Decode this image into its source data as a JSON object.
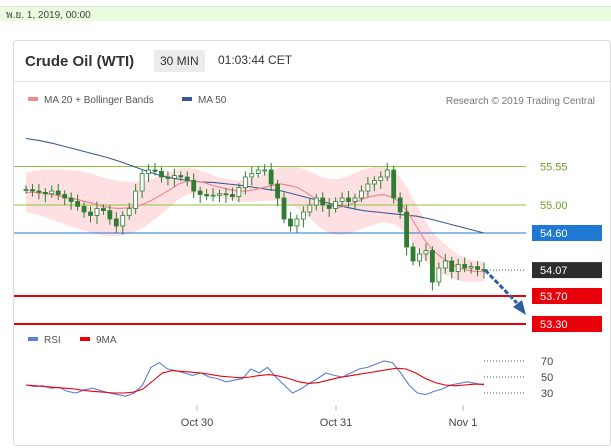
{
  "date_label": "พ.ย. 1, 2019, 00:00",
  "header": {
    "title": "Crude Oil (WTI)",
    "timeframe": "30 MIN",
    "time": "01:03:44 CET"
  },
  "legend": {
    "ma20": "MA 20 + Bollinger Bands",
    "ma50": "MA 50",
    "credit": "Research © 2019 Trading Central"
  },
  "rsi_legend": {
    "rsi": "RSI",
    "ma9": "9MA"
  },
  "colors": {
    "green": "#8cc63f",
    "blue": "#1f78d1",
    "red": "#e8000b",
    "dark": "#2d2d2d",
    "candle": "#2e7d32",
    "band": "#ffd5d8",
    "ma20": "#f08a90",
    "ma50": "#3a5a96",
    "arrow": "#2e5fa3"
  },
  "chart_data": {
    "type": "candlestick",
    "ylim": [
      53.2,
      56.2
    ],
    "x_ticks": [
      "Oct 30",
      "Oct 31",
      "Nov 1"
    ],
    "levels": [
      {
        "label": "55.55",
        "value": 55.55,
        "style": "green"
      },
      {
        "label": "55.00",
        "value": 55.0,
        "style": "green"
      },
      {
        "label": "54.60",
        "value": 54.6,
        "style": "blue"
      },
      {
        "label": "54.07",
        "value": 54.07,
        "style": "dark"
      },
      {
        "label": "53.70",
        "value": 53.7,
        "style": "red"
      },
      {
        "label": "53.30",
        "value": 53.3,
        "style": "red"
      }
    ],
    "price": [
      55.22,
      55.2,
      55.18,
      55.16,
      55.2,
      55.15,
      55.1,
      55.05,
      54.98,
      54.9,
      54.85,
      54.95,
      54.92,
      54.8,
      54.7,
      54.85,
      54.95,
      55.2,
      55.45,
      55.5,
      55.48,
      55.4,
      55.38,
      55.42,
      55.4,
      55.35,
      55.2,
      55.15,
      55.13,
      55.14,
      55.16,
      55.15,
      55.12,
      55.25,
      55.4,
      55.45,
      55.5,
      55.5,
      55.3,
      55.1,
      54.8,
      54.7,
      54.8,
      54.9,
      55.0,
      55.1,
      55.0,
      54.95,
      55.05,
      55.1,
      55.05,
      55.1,
      55.2,
      55.3,
      55.35,
      55.4,
      55.5,
      55.1,
      54.9,
      54.4,
      54.2,
      54.3,
      54.35,
      53.9,
      54.1,
      54.2,
      54.05,
      54.15,
      54.1,
      54.12,
      54.08,
      54.07
    ],
    "ma20": [
      55.18,
      55.18,
      55.17,
      55.15,
      55.13,
      55.1,
      55.08,
      55.05,
      55.02,
      54.98,
      54.96,
      54.95,
      54.96,
      54.98,
      55.02,
      55.08,
      55.15,
      55.22,
      55.3,
      55.34,
      55.34,
      55.32,
      55.28,
      55.25,
      55.22,
      55.2,
      55.2,
      55.22,
      55.25,
      55.28,
      55.3,
      55.28,
      55.25,
      55.18,
      55.1,
      55.02,
      54.98,
      54.97,
      55.0,
      55.05,
      55.1,
      55.13,
      55.15,
      55.12,
      55.05,
      54.9,
      54.7,
      54.5,
      54.35,
      54.25,
      54.18,
      54.1,
      54.07,
      54.05,
      54.05
    ],
    "ma50": [
      55.95,
      55.92,
      55.88,
      55.83,
      55.78,
      55.73,
      55.68,
      55.62,
      55.55,
      55.48,
      55.42,
      55.38,
      55.35,
      55.33,
      55.32,
      55.3,
      55.28,
      55.25,
      55.22,
      55.2,
      55.15,
      55.1,
      55.05,
      55.0,
      54.96,
      54.92,
      54.9,
      54.88,
      54.86,
      54.84,
      54.8,
      54.75,
      54.7,
      54.65,
      54.6
    ],
    "rsi_ticks": [
      70,
      50,
      30
    ],
    "rsi_ylim": [
      20,
      80
    ],
    "rsi": [
      40,
      38,
      39,
      36,
      37,
      32,
      30,
      34,
      36,
      33,
      30,
      28,
      26,
      30,
      40,
      62,
      68,
      60,
      58,
      55,
      52,
      55,
      50,
      48,
      44,
      46,
      48,
      60,
      55,
      62,
      50,
      40,
      30,
      35,
      42,
      48,
      55,
      52,
      50,
      55,
      60,
      62,
      66,
      70,
      68,
      55,
      40,
      30,
      28,
      32,
      35,
      40,
      42,
      44,
      42,
      40
    ],
    "rsi_ma9": [
      40,
      39,
      38,
      37,
      36,
      35,
      33,
      32,
      31,
      30,
      30,
      31,
      35,
      45,
      55,
      58,
      57,
      56,
      55,
      53,
      51,
      50,
      49,
      50,
      52,
      53,
      51,
      48,
      44,
      42,
      43,
      46,
      49,
      51,
      53,
      55,
      57,
      59,
      61,
      60,
      55,
      48,
      43,
      40,
      39,
      40,
      41,
      41
    ]
  }
}
